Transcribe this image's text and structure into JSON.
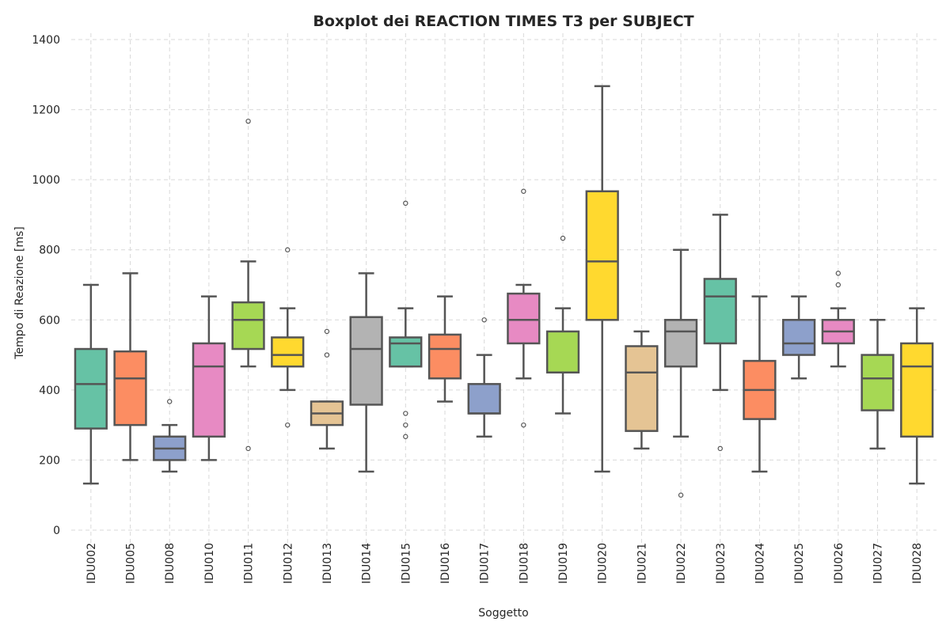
{
  "chart_data": {
    "type": "box",
    "title": "Boxplot dei REACTION TIMES T3 per SUBJECT",
    "xlabel": "Soggetto",
    "ylabel": "Tempo di Reazione [ms]",
    "ylim": [
      -60,
      1420
    ],
    "yticks": [
      0,
      200,
      400,
      600,
      800,
      1000,
      1200,
      1400
    ],
    "grid": true,
    "legend": "none",
    "palette": [
      "#66c2a5",
      "#fc8d62",
      "#8da0cb",
      "#e78ac3",
      "#a6d854",
      "#ffd92f",
      "#e5c494",
      "#b3b3b3"
    ],
    "line_color": "#555555",
    "series": [
      {
        "subject": "IDU002",
        "whisker_low": 133,
        "q1": 290,
        "median": 417,
        "q3": 517,
        "whisker_high": 700,
        "outliers": []
      },
      {
        "subject": "IDU005",
        "whisker_low": 200,
        "q1": 300,
        "median": 433,
        "q3": 510,
        "whisker_high": 733,
        "outliers": []
      },
      {
        "subject": "IDU008",
        "whisker_low": 167,
        "q1": 200,
        "median": 233,
        "q3": 267,
        "whisker_high": 300,
        "outliers": [
          367
        ]
      },
      {
        "subject": "IDU010",
        "whisker_low": 200,
        "q1": 267,
        "median": 467,
        "q3": 533,
        "whisker_high": 667,
        "outliers": []
      },
      {
        "subject": "IDU011",
        "whisker_low": 467,
        "q1": 517,
        "median": 600,
        "q3": 650,
        "whisker_high": 767,
        "outliers": [
          1167,
          233
        ]
      },
      {
        "subject": "IDU012",
        "whisker_low": 400,
        "q1": 467,
        "median": 500,
        "q3": 550,
        "whisker_high": 633,
        "outliers": [
          800,
          300
        ]
      },
      {
        "subject": "IDU013",
        "whisker_low": 233,
        "q1": 300,
        "median": 333,
        "q3": 367,
        "whisker_high": 367,
        "outliers": [
          567,
          500
        ]
      },
      {
        "subject": "IDU014",
        "whisker_low": 167,
        "q1": 358,
        "median": 517,
        "q3": 608,
        "whisker_high": 733,
        "outliers": []
      },
      {
        "subject": "IDU015",
        "whisker_low": 467,
        "q1": 467,
        "median": 533,
        "q3": 550,
        "whisker_high": 633,
        "outliers": [
          933,
          333,
          300,
          267
        ]
      },
      {
        "subject": "IDU016",
        "whisker_low": 367,
        "q1": 433,
        "median": 517,
        "q3": 558,
        "whisker_high": 667,
        "outliers": []
      },
      {
        "subject": "IDU017",
        "whisker_low": 267,
        "q1": 333,
        "median": 333,
        "q3": 417,
        "whisker_high": 500,
        "outliers": [
          600
        ]
      },
      {
        "subject": "IDU018",
        "whisker_low": 433,
        "q1": 533,
        "median": 600,
        "q3": 675,
        "whisker_high": 700,
        "outliers": [
          967,
          300
        ]
      },
      {
        "subject": "IDU019",
        "whisker_low": 333,
        "q1": 450,
        "median": 450,
        "q3": 567,
        "whisker_high": 633,
        "outliers": [
          833
        ]
      },
      {
        "subject": "IDU020",
        "whisker_low": 167,
        "q1": 600,
        "median": 767,
        "q3": 967,
        "whisker_high": 1267,
        "outliers": []
      },
      {
        "subject": "IDU021",
        "whisker_low": 233,
        "q1": 283,
        "median": 450,
        "q3": 525,
        "whisker_high": 567,
        "outliers": []
      },
      {
        "subject": "IDU022",
        "whisker_low": 267,
        "q1": 467,
        "median": 567,
        "q3": 600,
        "whisker_high": 800,
        "outliers": [
          100
        ]
      },
      {
        "subject": "IDU023",
        "whisker_low": 400,
        "q1": 533,
        "median": 667,
        "q3": 717,
        "whisker_high": 900,
        "outliers": [
          233
        ]
      },
      {
        "subject": "IDU024",
        "whisker_low": 167,
        "q1": 317,
        "median": 400,
        "q3": 483,
        "whisker_high": 667,
        "outliers": []
      },
      {
        "subject": "IDU025",
        "whisker_low": 433,
        "q1": 500,
        "median": 533,
        "q3": 600,
        "whisker_high": 667,
        "outliers": []
      },
      {
        "subject": "IDU026",
        "whisker_low": 467,
        "q1": 533,
        "median": 567,
        "q3": 600,
        "whisker_high": 633,
        "outliers": [
          733,
          700
        ]
      },
      {
        "subject": "IDU027",
        "whisker_low": 233,
        "q1": 342,
        "median": 433,
        "q3": 500,
        "whisker_high": 600,
        "outliers": []
      },
      {
        "subject": "IDU028",
        "whisker_low": 133,
        "q1": 267,
        "median": 467,
        "q3": 533,
        "whisker_high": 633,
        "outliers": []
      }
    ]
  }
}
